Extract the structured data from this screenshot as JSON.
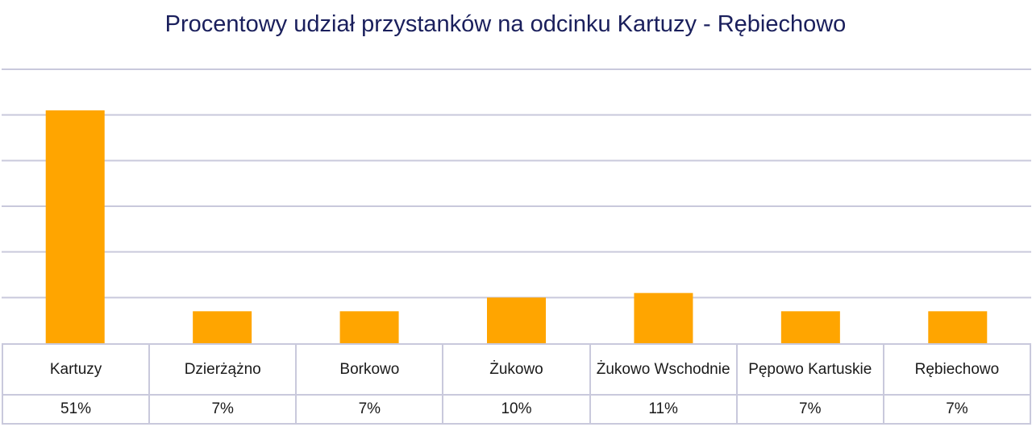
{
  "chart_data": {
    "type": "bar",
    "title": "Procentowy udział przystanków na odcinku Kartuzy - Rębiechowo",
    "categories": [
      "Kartuzy",
      "Dzierżążno",
      "Borkowo",
      "Żukowo",
      "Żukowo Wschodnie",
      "Pępowo Kartuskie",
      "Rębiechowo"
    ],
    "values": [
      51,
      7,
      7,
      10,
      11,
      7,
      7
    ],
    "value_labels": [
      "51%",
      "7%",
      "7%",
      "10%",
      "11%",
      "7%",
      "7%"
    ],
    "ylim": [
      0,
      60
    ],
    "grid": true,
    "color": "#ffa500",
    "gridline_color": "#c9c9dc"
  }
}
